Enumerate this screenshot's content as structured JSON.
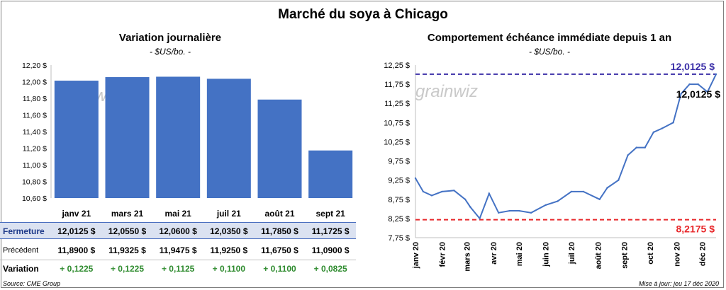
{
  "title": "Marché du soya à Chicago",
  "left": {
    "subtitle": "Variation  journalière",
    "unit": "- $US/bo. -"
  },
  "right": {
    "subtitle": "Comportement  échéance immédiate depuis 1 an",
    "unit": "- $US/bo. -",
    "label_high": "12,0125 $",
    "label_low": "8,2175 $",
    "label_last": "12,0125 $"
  },
  "watermark": "grainwiz",
  "table": {
    "close_label": "Fermeture",
    "prev_label": "Précédent",
    "var_label": "Variation",
    "close": [
      "12,0125  $",
      "12,0550  $",
      "12,0600  $",
      "12,0350  $",
      "11,7850  $",
      "11,1725  $"
    ],
    "prev": [
      "11,8900  $",
      "11,9325  $",
      "11,9475  $",
      "11,9250  $",
      "11,6750  $",
      "11,0900  $"
    ],
    "var": [
      "+ 0,1225",
      "+ 0,1225",
      "+ 0,1125",
      "+ 0,1100",
      "+ 0,1100",
      "+ 0,0825"
    ]
  },
  "source": "Source: CME Group",
  "updated": "Mise à jour: jeu 17 déc 2020",
  "chart_data": [
    {
      "type": "bar",
      "categories": [
        "janv 21",
        "mars 21",
        "mai 21",
        "juil 21",
        "août 21",
        "sept 21"
      ],
      "values": [
        12.0125,
        12.055,
        12.06,
        12.035,
        11.785,
        11.1725
      ],
      "ylim": [
        10.6,
        12.2
      ],
      "yticks": [
        "10,60 $",
        "10,80 $",
        "11,00 $",
        "11,20 $",
        "11,40 $",
        "11,60 $",
        "11,80 $",
        "12,00 $",
        "12,20 $"
      ],
      "color": "#4472c4",
      "grid": false
    },
    {
      "type": "line",
      "ylim": [
        7.75,
        12.25
      ],
      "yticks": [
        "7,75 $",
        "8,25 $",
        "8,75 $",
        "9,25 $",
        "9,75 $",
        "10,25 $",
        "10,75 $",
        "11,25 $",
        "11,75 $",
        "12,25 $"
      ],
      "xticks": [
        "janv 20",
        "févr 20",
        "mars 20",
        "avr 20",
        "mai 20",
        "juin 20",
        "juil 20",
        "août 20",
        "sept 20",
        "oct 20",
        "nov 20",
        "déc 20"
      ],
      "x": [
        "2020-01-01",
        "2020-01-10",
        "2020-01-20",
        "2020-02-01",
        "2020-02-15",
        "2020-02-28",
        "2020-03-05",
        "2020-03-16",
        "2020-03-27",
        "2020-04-07",
        "2020-04-20",
        "2020-05-01",
        "2020-05-15",
        "2020-06-01",
        "2020-06-15",
        "2020-07-01",
        "2020-07-15",
        "2020-08-03",
        "2020-08-12",
        "2020-08-25",
        "2020-09-05",
        "2020-09-15",
        "2020-09-25",
        "2020-10-05",
        "2020-10-15",
        "2020-10-28",
        "2020-11-06",
        "2020-11-16",
        "2020-11-26",
        "2020-12-07",
        "2020-12-17"
      ],
      "values": [
        9.3,
        8.95,
        8.85,
        8.95,
        8.98,
        8.75,
        8.55,
        8.25,
        8.9,
        8.4,
        8.45,
        8.45,
        8.4,
        8.6,
        8.7,
        8.95,
        8.95,
        8.75,
        9.05,
        9.25,
        9.9,
        10.1,
        10.1,
        10.5,
        10.6,
        10.75,
        11.5,
        11.75,
        11.75,
        11.55,
        12.0125
      ],
      "series_color": "#4472c4",
      "reference_lines": [
        {
          "value": 12.0125,
          "color": "#3b2fa8",
          "style": "dashed"
        },
        {
          "value": 8.2175,
          "color": "#e8282b",
          "style": "dashed"
        }
      ]
    }
  ]
}
